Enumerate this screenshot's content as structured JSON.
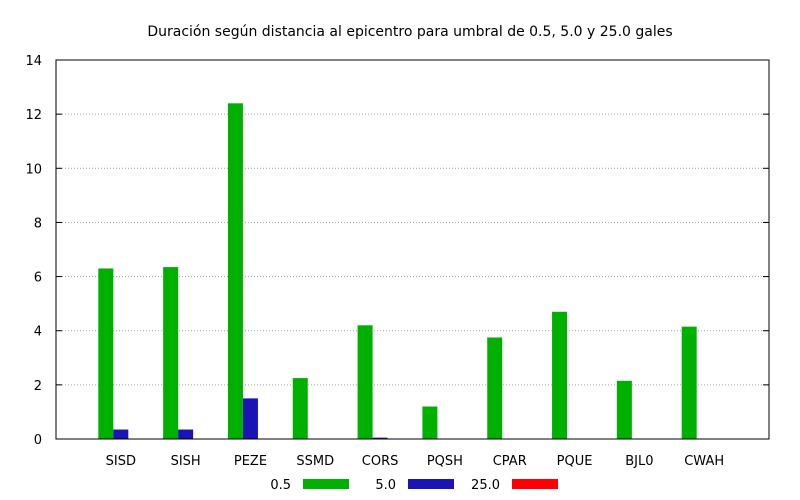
{
  "chart_data": {
    "type": "bar",
    "title": "Duración según distancia al epicentro para umbral de 0.5, 5.0 y 25.0 gales",
    "xlabel": "",
    "ylabel": "",
    "categories": [
      "SISD",
      "SISH",
      "PEZE",
      "SSMD",
      "CORS",
      "PQSH",
      "CPAR",
      "PQUE",
      "BJL0",
      "CWAH"
    ],
    "series": [
      {
        "name": "0.5",
        "color": "#00b000",
        "values": [
          6.3,
          6.35,
          12.4,
          2.25,
          4.2,
          1.2,
          3.75,
          4.7,
          2.15,
          4.15
        ]
      },
      {
        "name": "5.0",
        "color": "#1a14b4",
        "values": [
          0.35,
          0.35,
          1.5,
          0,
          0.05,
          0,
          0,
          0,
          0,
          0
        ]
      },
      {
        "name": "25.0",
        "color": "#ff0000",
        "values": [
          0,
          0,
          0,
          0,
          0,
          0,
          0,
          0,
          0,
          0
        ]
      }
    ],
    "ylim": [
      0,
      14
    ],
    "yticks": [
      0,
      2,
      4,
      6,
      8,
      10,
      12,
      14
    ],
    "grid": "horizontal-dotted",
    "legend_position": "bottom"
  }
}
